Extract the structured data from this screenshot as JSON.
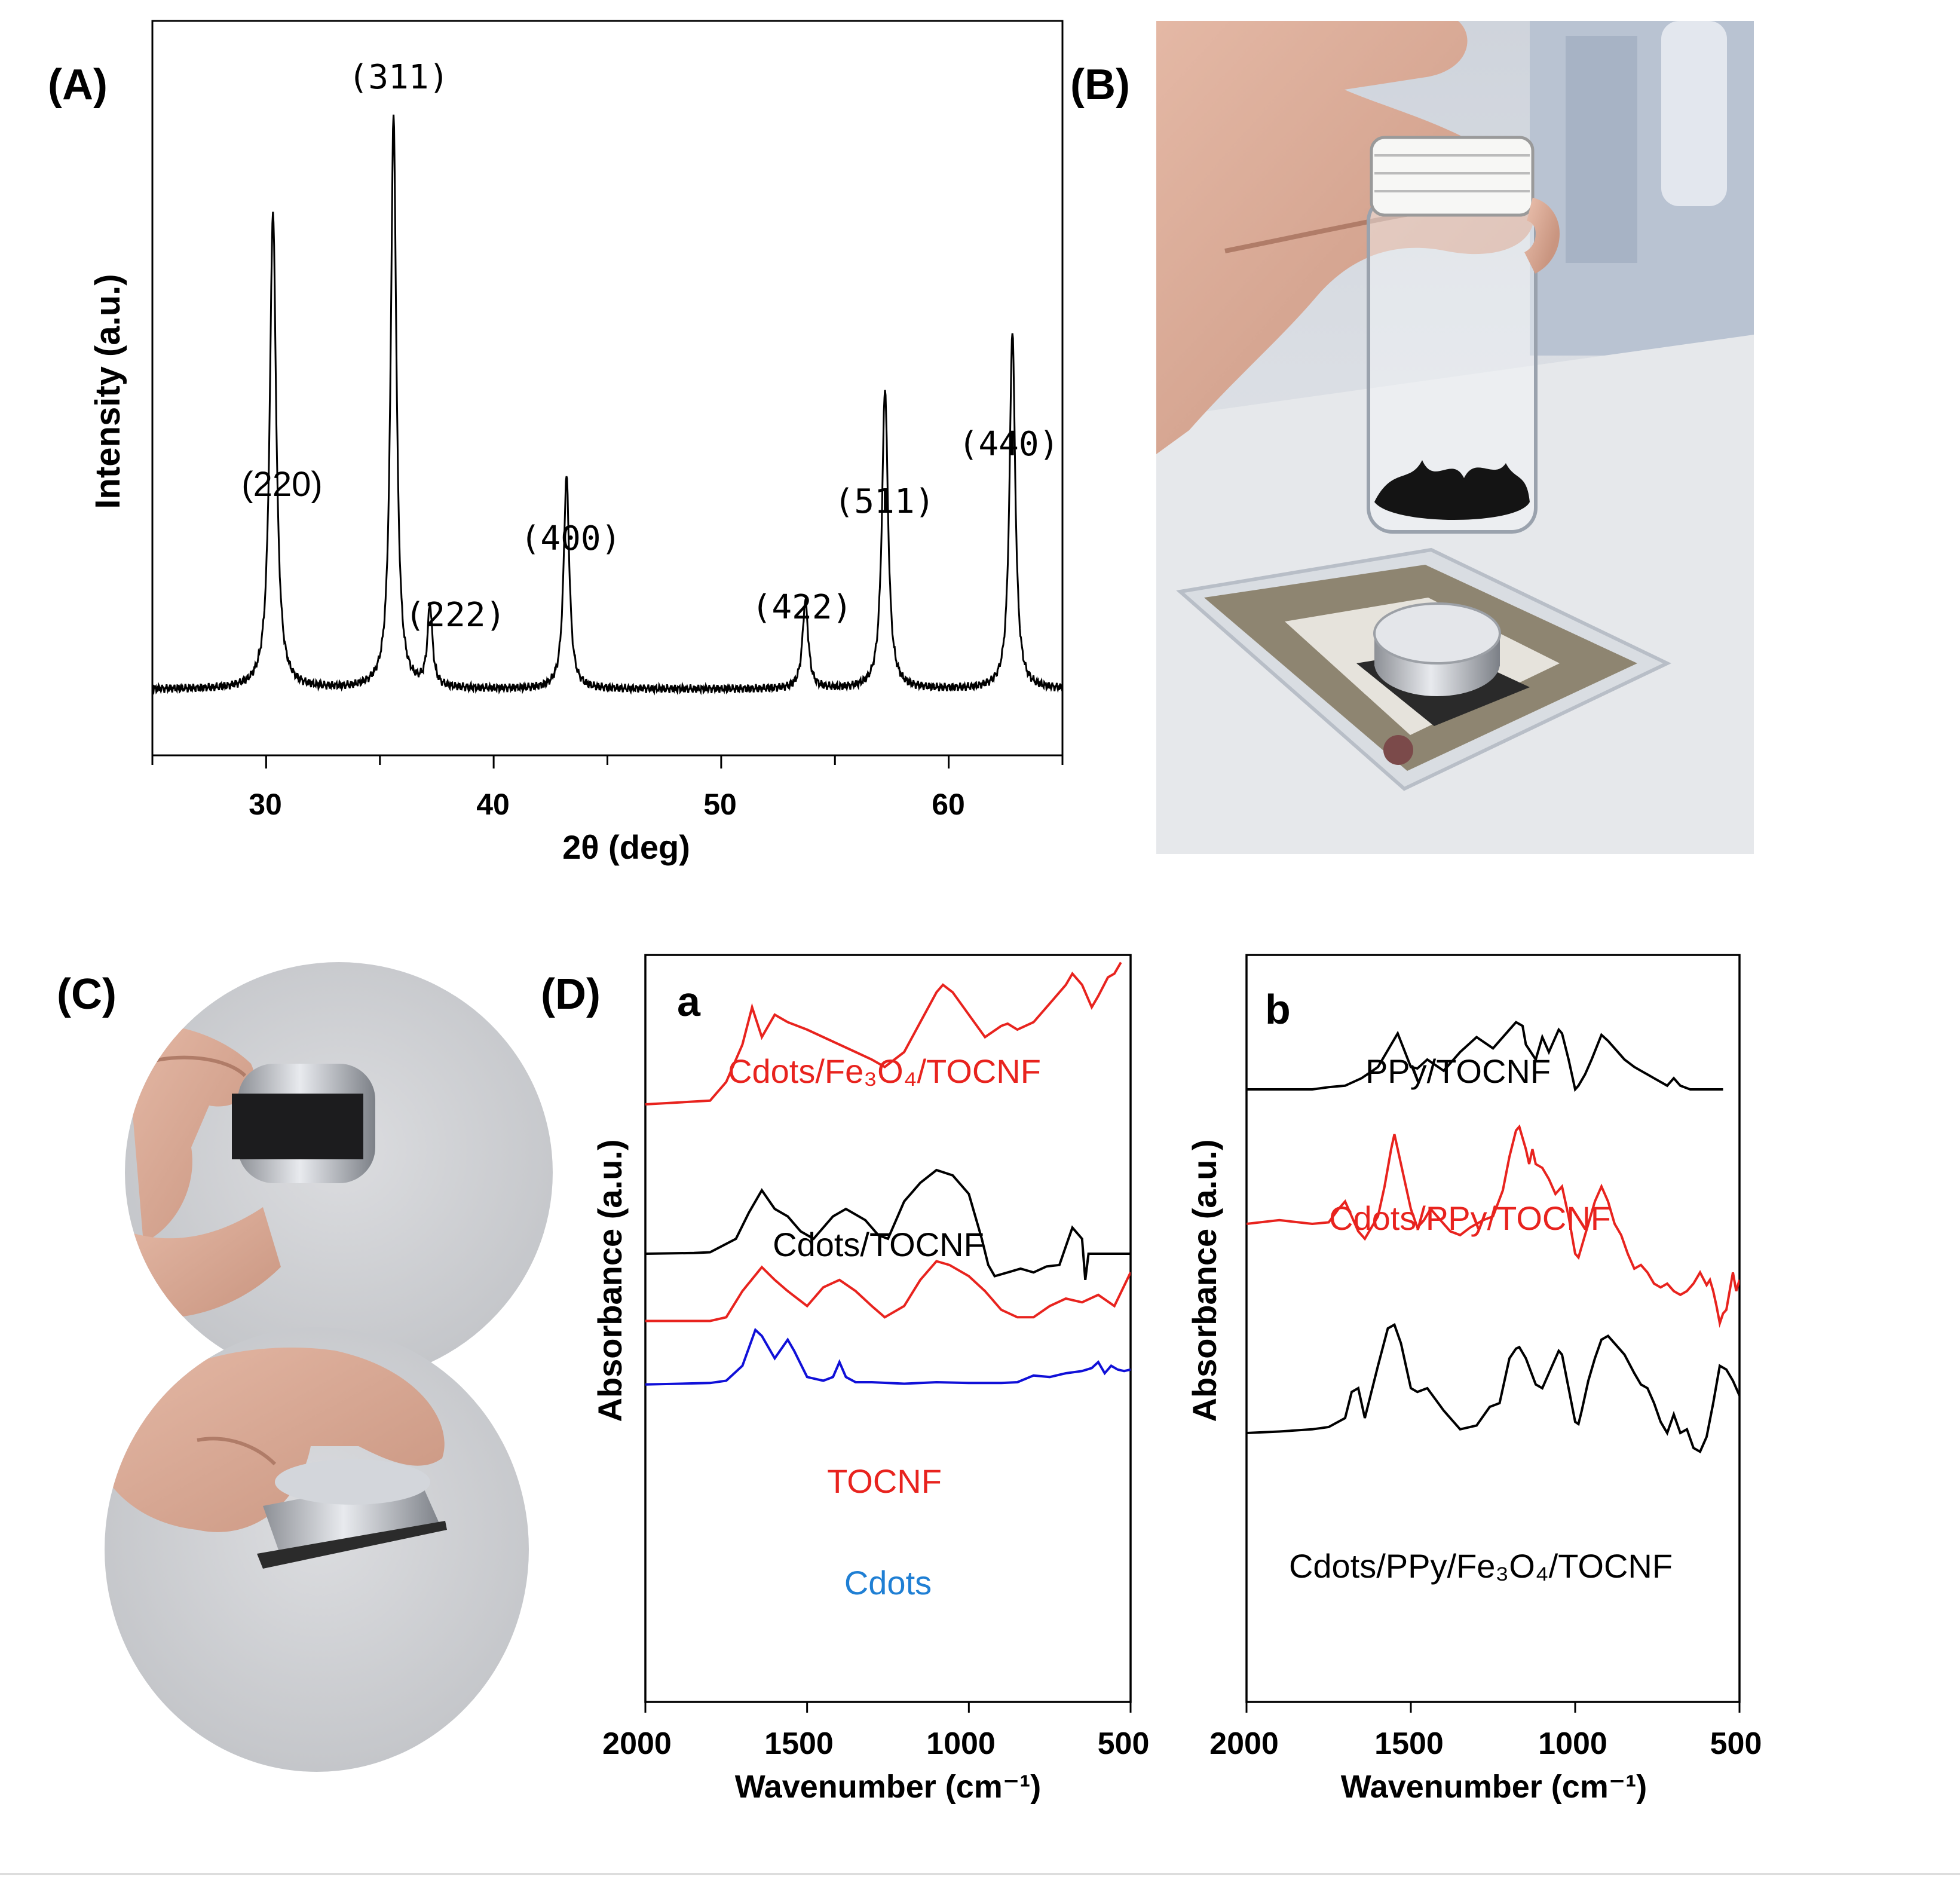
{
  "colors": {
    "black": "#000000",
    "red": "#e8231e",
    "blue": "#1010d8",
    "blueLabel": "#1f7fd4",
    "bottomRule": "#dddddd"
  },
  "panel_labels": {
    "A": "(A)",
    "B": "(B)",
    "C": "(C)",
    "D": "(D)"
  },
  "chart_data": [
    {
      "id": "xrd",
      "type": "line",
      "xlabel": "2θ (deg)",
      "ylabel": "Intensity (a.u.)",
      "xlim": [
        25,
        65
      ],
      "ylim": [
        0,
        1
      ],
      "xticks": [
        "30",
        "40",
        "50",
        "60"
      ],
      "baseline": 0.09,
      "peaks": [
        {
          "label": "(220)",
          "x": 30.3,
          "height": 0.74,
          "width": 0.17
        },
        {
          "label": "(311)",
          "x": 35.6,
          "height": 0.87,
          "width": 0.15
        },
        {
          "label": "(222)",
          "x": 37.2,
          "height": 0.2,
          "width": 0.13
        },
        {
          "label": "(400)",
          "x": 43.2,
          "height": 0.38,
          "width": 0.15
        },
        {
          "label": "(422)",
          "x": 53.7,
          "height": 0.21,
          "width": 0.15
        },
        {
          "label": "(511)",
          "x": 57.2,
          "height": 0.5,
          "width": 0.16
        },
        {
          "label": "(440)",
          "x": 62.8,
          "height": 0.58,
          "width": 0.15
        }
      ]
    },
    {
      "id": "ftir-a",
      "type": "line",
      "panel_letter": "a",
      "xlabel": "Wavenumber (cm⁻¹)",
      "ylabel": "Absorbance (a.u.)",
      "xlim": [
        2000,
        500
      ],
      "ylim": [
        0,
        100
      ],
      "xticks": [
        "2000",
        "1500",
        "1000",
        "500"
      ],
      "series": [
        {
          "name": "Cdots/Fe₃O₄/TOCNF",
          "color": "#e8231e",
          "x": [
            2000,
            1800,
            1750,
            1700,
            1670,
            1640,
            1600,
            1560,
            1500,
            1450,
            1400,
            1350,
            1300,
            1260,
            1200,
            1150,
            1100,
            1080,
            1050,
            1000,
            950,
            900,
            880,
            850,
            800,
            750,
            700,
            680,
            650,
            620,
            600,
            570,
            550,
            530
          ],
          "y": [
            80,
            80.5,
            83,
            88,
            93,
            89,
            92,
            91,
            90,
            89,
            88,
            87,
            86,
            85,
            87,
            91,
            95,
            96,
            95,
            92,
            89,
            90.5,
            90.8,
            90,
            91,
            93.5,
            96,
            97.5,
            96,
            93,
            94.5,
            97,
            97.5,
            99
          ]
        },
        {
          "name": "Cdots/TOCNF",
          "color": "#000000",
          "x": [
            2000,
            1850,
            1800,
            1720,
            1680,
            1640,
            1600,
            1560,
            1520,
            1480,
            1420,
            1380,
            1320,
            1280,
            1250,
            1200,
            1150,
            1100,
            1050,
            1000,
            960,
            940,
            920,
            880,
            840,
            800,
            760,
            720,
            700,
            680,
            650,
            640,
            630,
            600,
            550,
            500
          ],
          "y": [
            60,
            60.1,
            60.2,
            62,
            65.5,
            68.5,
            66,
            65,
            63,
            62,
            65,
            66,
            64.5,
            62.5,
            62,
            67,
            69.5,
            71.2,
            70.5,
            68,
            62,
            58.5,
            57,
            57.5,
            58,
            57.5,
            58.3,
            58.5,
            61,
            63.5,
            62,
            56.5,
            60,
            60,
            60,
            60
          ]
        },
        {
          "name": "TOCNF",
          "color": "#e8231e",
          "x": [
            2000,
            1800,
            1750,
            1700,
            1640,
            1600,
            1560,
            1500,
            1450,
            1400,
            1350,
            1300,
            1260,
            1200,
            1150,
            1100,
            1060,
            1000,
            950,
            900,
            850,
            800,
            750,
            700,
            650,
            600,
            550,
            500
          ],
          "y": [
            51,
            51,
            51.5,
            55,
            58.2,
            56.5,
            55,
            53,
            55.5,
            56.5,
            55,
            53,
            51.5,
            53,
            56.5,
            59,
            58.5,
            57,
            55,
            52.5,
            51.5,
            51.5,
            53,
            54,
            53.5,
            54.5,
            53,
            57.5
          ]
        },
        {
          "name": "Cdots",
          "color": "#1010d8",
          "x": [
            2000,
            1800,
            1750,
            1700,
            1660,
            1640,
            1600,
            1560,
            1540,
            1500,
            1450,
            1420,
            1400,
            1380,
            1350,
            1300,
            1200,
            1100,
            1000,
            900,
            850,
            800,
            750,
            700,
            650,
            620,
            600,
            580,
            560,
            540,
            520,
            500
          ],
          "y": [
            42.5,
            42.7,
            43,
            45,
            49.8,
            49,
            46,
            48.5,
            47,
            43.5,
            43,
            43.5,
            45.5,
            43.5,
            42.8,
            42.8,
            42.6,
            42.8,
            42.7,
            42.7,
            42.8,
            43.7,
            43.5,
            44,
            44.3,
            44.7,
            45.5,
            44,
            45,
            44.5,
            44.3,
            44.5
          ]
        }
      ],
      "annotations": [
        {
          "text": "Cdots/Fe₃O₄/TOCNF",
          "color": "#e8231e"
        },
        {
          "text": "Cdots/TOCNF",
          "color": "#000000"
        },
        {
          "text": "TOCNF",
          "color": "#e8231e"
        },
        {
          "text": "Cdots",
          "color": "#1f7fd4"
        }
      ]
    },
    {
      "id": "ftir-b",
      "type": "line",
      "panel_letter": "b",
      "xlabel": "Wavenumber (cm⁻¹)",
      "ylabel": "Absorbance (a.u.)",
      "xlim": [
        2000,
        500
      ],
      "ylim": [
        0,
        100
      ],
      "xticks": [
        "2000",
        "1500",
        "1000",
        "500"
      ],
      "series": [
        {
          "name": "PPy/TOCNF",
          "color": "#000000",
          "x": [
            2000,
            1800,
            1750,
            1700,
            1650,
            1600,
            1560,
            1540,
            1500,
            1480,
            1450,
            1400,
            1350,
            1300,
            1250,
            1200,
            1180,
            1160,
            1150,
            1120,
            1100,
            1080,
            1050,
            1040,
            1020,
            1000,
            990,
            970,
            950,
            920,
            900,
            870,
            850,
            820,
            800,
            780,
            760,
            720,
            700,
            680,
            650,
            600,
            550
          ],
          "y": [
            82,
            82,
            82.3,
            82.5,
            83.5,
            85,
            88,
            89.5,
            85,
            84.8,
            86,
            84.5,
            87,
            89,
            87.5,
            90,
            91,
            90.5,
            88,
            86,
            89,
            87,
            90,
            89.5,
            86,
            82,
            82.5,
            84,
            86,
            89.3,
            88.5,
            87,
            86,
            85,
            84.5,
            84,
            83.5,
            82.5,
            83.5,
            82.5,
            82,
            82,
            82
          ]
        },
        {
          "name": "Cdots/PPy/TOCNF",
          "color": "#e8231e",
          "x": [
            2000,
            1900,
            1800,
            1750,
            1720,
            1700,
            1680,
            1660,
            1640,
            1600,
            1580,
            1560,
            1550,
            1540,
            1520,
            1500,
            1480,
            1460,
            1440,
            1420,
            1400,
            1380,
            1350,
            1320,
            1300,
            1280,
            1250,
            1220,
            1200,
            1180,
            1170,
            1160,
            1150,
            1140,
            1130,
            1120,
            1100,
            1080,
            1060,
            1040,
            1020,
            1000,
            990,
            980,
            960,
            940,
            920,
            900,
            880,
            860,
            840,
            820,
            800,
            780,
            760,
            740,
            720,
            700,
            680,
            660,
            640,
            620,
            600,
            590,
            580,
            570,
            560,
            550,
            540,
            530,
            520,
            510,
            500
          ],
          "y": [
            64,
            64.5,
            64,
            64.2,
            66,
            67,
            65,
            63,
            62,
            65,
            69,
            74,
            76,
            74,
            70,
            66,
            63.5,
            64.5,
            66,
            65,
            64,
            63,
            62.5,
            63.5,
            64,
            64.5,
            65,
            68.5,
            73,
            76.5,
            77,
            75.5,
            74,
            72,
            74,
            72,
            71.5,
            70,
            68,
            69,
            65,
            60,
            59.5,
            61,
            64,
            67,
            69,
            67,
            64,
            62.5,
            60,
            58,
            58.5,
            57.5,
            56,
            55.5,
            56,
            55,
            54.5,
            55,
            56,
            57.5,
            55.8,
            56.5,
            55,
            53,
            50.7,
            52,
            52.5,
            55,
            57.5,
            55,
            56.5
          ]
        },
        {
          "name": "Cdots/PPy/Fe₃O₄/TOCNF",
          "color": "#000000",
          "x": [
            2000,
            1900,
            1800,
            1750,
            1700,
            1680,
            1660,
            1640,
            1600,
            1570,
            1550,
            1530,
            1500,
            1480,
            1450,
            1400,
            1350,
            1300,
            1260,
            1230,
            1200,
            1180,
            1170,
            1150,
            1120,
            1100,
            1080,
            1050,
            1040,
            1020,
            1000,
            990,
            980,
            960,
            940,
            920,
            900,
            880,
            850,
            820,
            800,
            780,
            760,
            740,
            720,
            700,
            680,
            660,
            640,
            620,
            600,
            580,
            560,
            540,
            520,
            500
          ],
          "y": [
            36,
            36.2,
            36.5,
            36.8,
            38,
            41.5,
            42,
            38,
            45,
            50,
            50.5,
            48,
            42,
            41.5,
            42,
            39,
            36.5,
            37,
            39.5,
            40,
            46,
            47.3,
            47.5,
            46,
            42.5,
            42,
            44,
            47,
            46.5,
            42,
            37.5,
            37.2,
            39,
            43,
            46,
            48.5,
            49,
            48,
            46.5,
            44,
            42.5,
            42,
            40,
            37.5,
            36,
            38.5,
            36,
            36.5,
            34,
            33.5,
            35.5,
            40,
            45,
            44.5,
            43,
            41
          ]
        }
      ],
      "annotations": [
        {
          "text": "PPy/TOCNF",
          "color": "#000000"
        },
        {
          "text": "Cdots/PPy/TOCNF",
          "color": "#e8231e"
        },
        {
          "text": "Cdots/PPy/Fe₃O₄/TOCNF",
          "color": "#000000"
        }
      ]
    }
  ]
}
